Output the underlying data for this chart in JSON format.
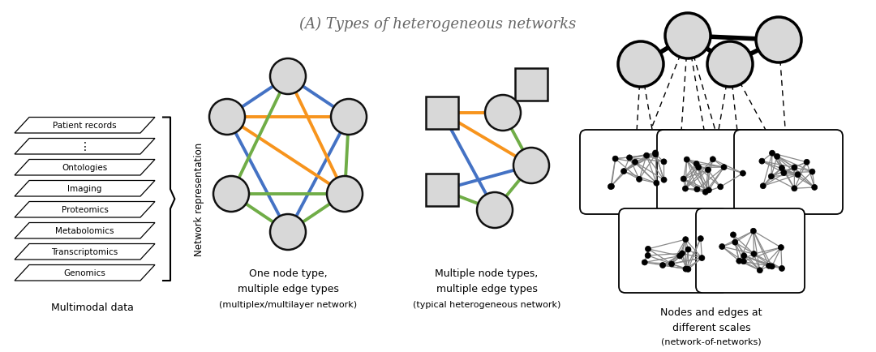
{
  "title": "(A) Types of heterogeneous networks",
  "title_fontsize": 13,
  "title_color": "#666666",
  "bg_color": "#ffffff",
  "data_layers": [
    "Patient records",
    "⋮",
    "Ontologies",
    "Imaging",
    "Proteomics",
    "Metabolomics",
    "Transcriptomics",
    "Genomics"
  ],
  "label_multimodal": "Multimodal data",
  "label_network_repr": "Network representation",
  "label1_line1": "One node type,",
  "label1_line2": "multiple edge types",
  "label1_line3": "(multiplex/multilayer network)",
  "label2_line1": "Multiple node types,",
  "label2_line2": "multiple edge types",
  "label2_line3": "(typical heterogeneous network)",
  "label3_line1": "Nodes and edges at",
  "label3_line2": "different scales",
  "label3_line3": "(network-of-networks)",
  "color_orange": "#F7941D",
  "color_blue": "#4472C4",
  "color_green": "#70AD47",
  "node_fill": "#D8D8D8",
  "node_edge": "#111111"
}
